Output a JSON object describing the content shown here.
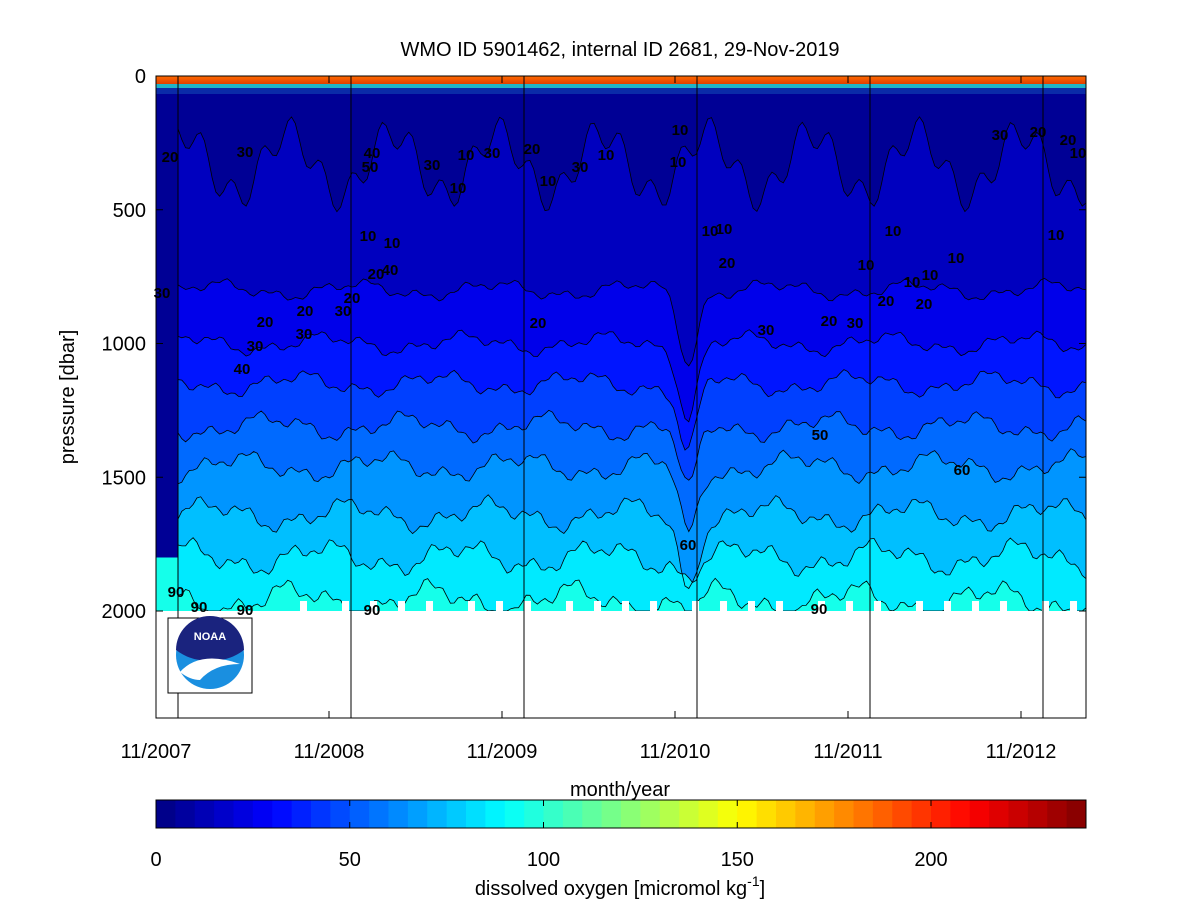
{
  "chart_data": {
    "type": "heatmap",
    "title": "WMO ID 5901462, internal ID 2681, 29-Nov-2019",
    "xlabel": "month/year",
    "ylabel": "pressure [dbar]",
    "x_ticks": [
      "11/2007",
      "11/2008",
      "11/2009",
      "11/2010",
      "11/2011",
      "11/2012"
    ],
    "y_ticks": [
      "0",
      "500",
      "1000",
      "1500",
      "2000"
    ],
    "ylim": [
      2400,
      0
    ],
    "y_reversed": true,
    "colorbar": {
      "label": "dissolved oxygen [micromol kg",
      "label_exp": "-1",
      "label_end": "]",
      "ticks": [
        "0",
        "50",
        "100",
        "150",
        "200"
      ],
      "range": [
        0,
        240
      ],
      "colormap": "jet"
    },
    "contour_levels": [
      10,
      20,
      30,
      40,
      50,
      60,
      70,
      80,
      90
    ],
    "profile_depth_max": 2000,
    "contour_labels": [
      "10",
      "20",
      "30",
      "40",
      "50",
      "60",
      "90"
    ],
    "logo": "NOAA"
  }
}
